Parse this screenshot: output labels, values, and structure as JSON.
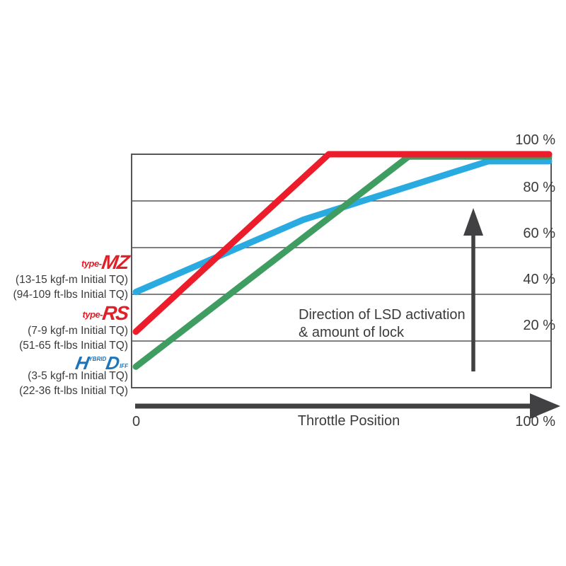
{
  "colors": {
    "red": "#ec1c2b",
    "green": "#3f9d62",
    "blue": "#29abe2",
    "dark": "#414042",
    "grid": "#565558",
    "text": "#3b3a3c",
    "logo_red": "#e01f29",
    "logo_blue": "#1b75bc"
  },
  "chart_data": {
    "type": "line",
    "title": "",
    "xlabel": "Throttle Position",
    "ylabel": "",
    "xlim": [
      0,
      100
    ],
    "ylim": [
      0,
      100
    ],
    "grid": "horizontal-only",
    "y_gridlines": [
      20,
      40,
      60,
      80
    ],
    "y_tick_labels": [
      "100 %",
      "80 %",
      "60 %",
      "40 %",
      "20 %"
    ],
    "x_axis": {
      "zero_label": "0",
      "title": "Throttle Position",
      "max_label": "100 %"
    },
    "annotation": {
      "line1": "Direction of LSD activation",
      "line2": "& amount of lock"
    },
    "series": [
      {
        "id": "type-mz",
        "name": "type-MZ",
        "color": "#29abe2",
        "points": [
          [
            0,
            41
          ],
          [
            41,
            72
          ],
          [
            85,
            97
          ],
          [
            100,
            97
          ]
        ]
      },
      {
        "id": "hybrid-diff",
        "name": "HD Hybrid Diff",
        "color": "#3f9d62",
        "points": [
          [
            0,
            9
          ],
          [
            66,
            99
          ],
          [
            100,
            99
          ]
        ]
      },
      {
        "id": "type-rs",
        "name": "type-RS",
        "color": "#ec1c2b",
        "points": [
          [
            0,
            24
          ],
          [
            47,
            100
          ],
          [
            100,
            100
          ]
        ]
      }
    ]
  },
  "legend": {
    "mz": {
      "logo_prefix": "type-",
      "logo_name": "MZ",
      "tq_kgf": "(13-15 kgf-m Initial TQ)",
      "tq_ftlbs": "(94-109 ft-lbs Initial TQ)"
    },
    "rs": {
      "logo_prefix": "type-",
      "logo_name": "RS",
      "tq_kgf": "(7-9 kgf-m Initial TQ)",
      "tq_ftlbs": "(51-65 ft-lbs Initial TQ)"
    },
    "hd": {
      "logo_main1": "H",
      "logo_small1": "YBRID",
      "logo_main2": "D",
      "logo_small2": "IFF",
      "tq_kgf": "(3-5 kgf-m Initial TQ)",
      "tq_ftlbs": "(22-36 ft-lbs Initial TQ)"
    }
  }
}
